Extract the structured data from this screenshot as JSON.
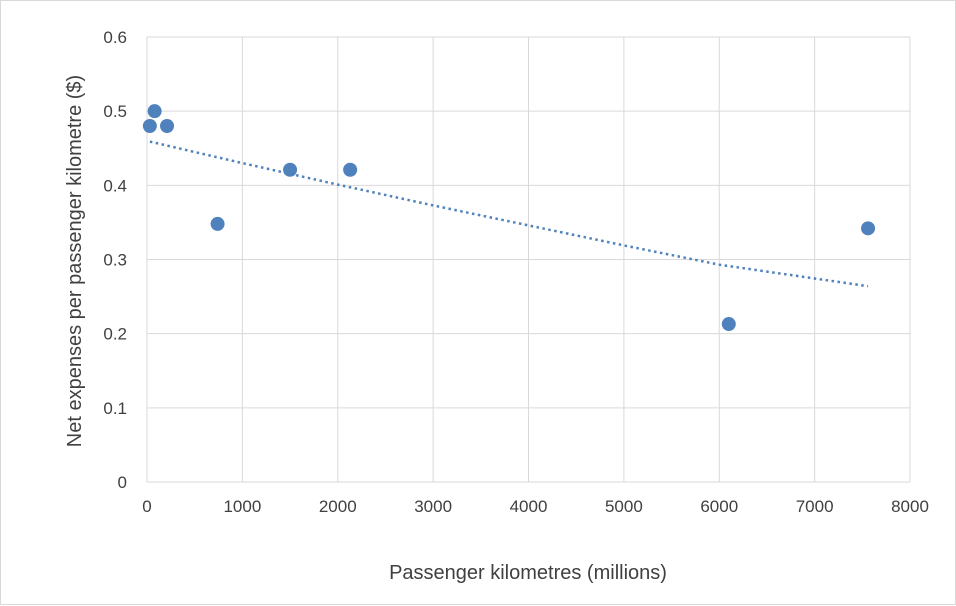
{
  "chart_data": {
    "type": "scatter",
    "xlabel": "Passenger kilometres (millions)",
    "ylabel": "Net expenses per passenger kilometre ($)",
    "xlim": [
      0,
      8000
    ],
    "ylim": [
      0,
      0.6
    ],
    "x_ticks": [
      0,
      1000,
      2000,
      3000,
      4000,
      5000,
      6000,
      7000,
      8000
    ],
    "y_ticks": [
      0,
      0.1,
      0.2,
      0.3,
      0.4,
      0.5,
      0.6
    ],
    "x_tick_labels": [
      "0",
      "1000",
      "2000",
      "3000",
      "4000",
      "5000",
      "6000",
      "7000",
      "8000"
    ],
    "y_tick_labels": [
      "0",
      "0.1",
      "0.2",
      "0.3",
      "0.4",
      "0.5",
      "0.6"
    ],
    "grid": true,
    "legend": "none",
    "series": [
      {
        "points": [
          {
            "x": 30,
            "y": 0.48
          },
          {
            "x": 80,
            "y": 0.5
          },
          {
            "x": 210,
            "y": 0.48
          },
          {
            "x": 740,
            "y": 0.348
          },
          {
            "x": 1500,
            "y": 0.421
          },
          {
            "x": 2130,
            "y": 0.421
          },
          {
            "x": 6100,
            "y": 0.213
          },
          {
            "x": 7560,
            "y": 0.342
          }
        ],
        "color": "#4f81bd"
      }
    ],
    "trendline": {
      "style": "dotted",
      "color": "#4f81bd",
      "points": [
        {
          "x": 30,
          "y": 0.459
        },
        {
          "x": 1000,
          "y": 0.43
        },
        {
          "x": 2000,
          "y": 0.401
        },
        {
          "x": 3000,
          "y": 0.373
        },
        {
          "x": 4000,
          "y": 0.346
        },
        {
          "x": 5000,
          "y": 0.319
        },
        {
          "x": 6000,
          "y": 0.293
        },
        {
          "x": 7560,
          "y": 0.264
        }
      ]
    }
  }
}
